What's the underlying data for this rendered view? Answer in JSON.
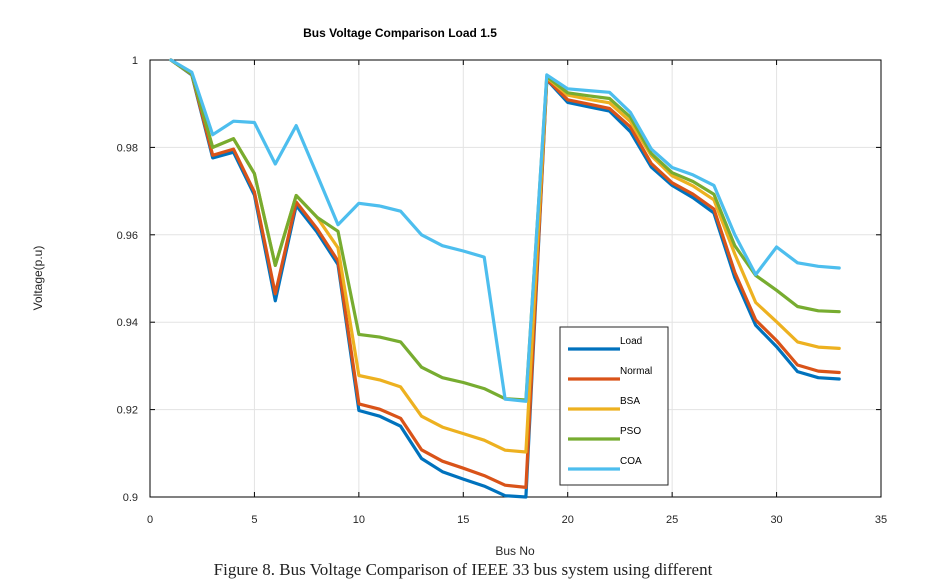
{
  "chart_data": {
    "type": "line",
    "title": "Bus Voltage Comparison Load 1.5",
    "xlabel": "Bus No",
    "ylabel": "Voltage(p.u)",
    "xlim": [
      0,
      35
    ],
    "ylim": [
      0.9,
      1.0
    ],
    "xticks": [
      0,
      5,
      10,
      15,
      20,
      25,
      30,
      35
    ],
    "yticks": [
      0.9,
      0.92,
      0.94,
      0.96,
      0.98,
      1
    ],
    "ytick_labels": [
      "0.9",
      "0.92",
      "0.94",
      "0.96",
      "0.98",
      "1"
    ],
    "grid": true,
    "legend_position": "lower-right inside",
    "x": [
      1,
      2,
      3,
      4,
      5,
      6,
      7,
      8,
      9,
      10,
      11,
      12,
      13,
      14,
      15,
      16,
      17,
      18,
      19,
      20,
      21,
      22,
      23,
      24,
      25,
      26,
      27,
      28,
      29,
      30,
      31,
      32,
      33
    ],
    "series": [
      {
        "name": "Load",
        "color": "#0072BD",
        "values": [
          1.0,
          0.9966,
          0.9776,
          0.9789,
          0.9691,
          0.9449,
          0.9667,
          0.9606,
          0.9532,
          0.9198,
          0.9185,
          0.9162,
          0.9088,
          0.9058,
          0.9041,
          0.9025,
          0.9003,
          0.9,
          0.9955,
          0.9903,
          0.9893,
          0.9883,
          0.9836,
          0.9755,
          0.9713,
          0.9685,
          0.965,
          0.9502,
          0.9393,
          0.9344,
          0.9287,
          0.9273,
          0.927
        ]
      },
      {
        "name": "Normal",
        "color": "#D95319",
        "values": [
          1.0,
          0.9967,
          0.9782,
          0.9796,
          0.9698,
          0.9465,
          0.9675,
          0.9614,
          0.954,
          0.9213,
          0.9201,
          0.918,
          0.9108,
          0.9082,
          0.9066,
          0.9049,
          0.9027,
          0.9022,
          0.9956,
          0.9909,
          0.9899,
          0.9889,
          0.9847,
          0.9763,
          0.9719,
          0.9693,
          0.9659,
          0.9514,
          0.9405,
          0.9358,
          0.9302,
          0.9288,
          0.9285
        ]
      },
      {
        "name": "BSA",
        "color": "#EDB120",
        "values": [
          1.0,
          0.9968,
          0.98,
          0.982,
          0.974,
          0.953,
          0.969,
          0.964,
          0.957,
          0.9278,
          0.9268,
          0.9252,
          0.9185,
          0.916,
          0.9145,
          0.913,
          0.9107,
          0.9103,
          0.996,
          0.992,
          0.991,
          0.9902,
          0.9859,
          0.9781,
          0.9735,
          0.9712,
          0.968,
          0.9556,
          0.9445,
          0.9401,
          0.9355,
          0.9343,
          0.934
        ]
      },
      {
        "name": "PSO",
        "color": "#77AC30",
        "values": [
          1.0,
          0.9968,
          0.98,
          0.982,
          0.974,
          0.953,
          0.969,
          0.964,
          0.9608,
          0.9372,
          0.9366,
          0.9355,
          0.9297,
          0.9273,
          0.9262,
          0.9248,
          0.9225,
          0.9222,
          0.9962,
          0.9925,
          0.9918,
          0.9912,
          0.9869,
          0.9786,
          0.9742,
          0.9722,
          0.9693,
          0.9575,
          0.9507,
          0.9473,
          0.9436,
          0.9426,
          0.9424
        ]
      },
      {
        "name": "COA",
        "color": "#4DBEEE",
        "values": [
          1.0,
          0.9972,
          0.9829,
          0.986,
          0.9857,
          0.9762,
          0.985,
          0.9737,
          0.9623,
          0.9672,
          0.9666,
          0.9654,
          0.96,
          0.9575,
          0.9563,
          0.9549,
          0.9224,
          0.9219,
          0.9966,
          0.9934,
          0.993,
          0.9926,
          0.988,
          0.9796,
          0.9754,
          0.9737,
          0.9713,
          0.96,
          0.9509,
          0.9572,
          0.9536,
          0.9528,
          0.9524
        ]
      }
    ]
  },
  "caption": "Figure 8. Bus Voltage Comparison of IEEE 33 bus system using different"
}
